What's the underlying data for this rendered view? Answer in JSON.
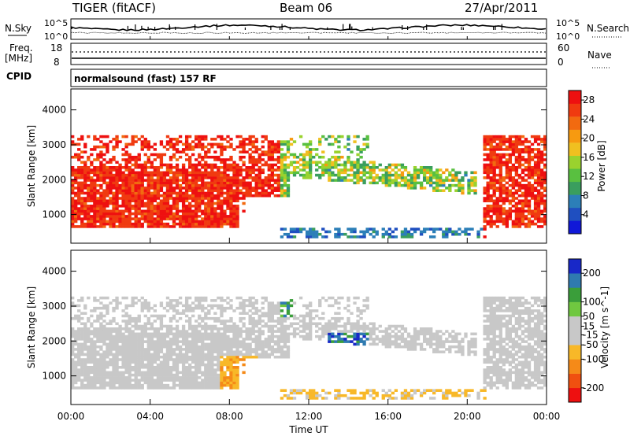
{
  "header": {
    "title": "TIGER (fitACF)",
    "beam": "Beam 06",
    "date": "27/Apr/2011",
    "cpid": "normalsound (fast) 157 RF"
  },
  "strip_labels": {
    "nsky": "N.Sky",
    "nsky_hi": "10^5",
    "nsky_lo": "10^0",
    "nsearch": "N.Search",
    "nsearch_hi": "10^5",
    "nsearch_lo": "10^0",
    "freq": "Freq.",
    "freq_unit": "[MHz]",
    "freq_hi": "18",
    "freq_lo": "8",
    "nave_hi": "60",
    "nave_lo": "0",
    "nave": "Nave",
    "cpid": "CPID"
  },
  "colors": {
    "power": [
      "#1018d8",
      "#1f4fc0",
      "#2c7fb8",
      "#3a9e5e",
      "#59c040",
      "#9ad22e",
      "#f0c020",
      "#f79a10",
      "#f26a10",
      "#f03a10",
      "#ee1010"
    ],
    "velocity": [
      "#ee1010",
      "#f05010",
      "#f58a18",
      "#f8b828",
      "#c8c8c8",
      "#c8c8c8",
      "#70c840",
      "#3a9e3a",
      "#2f7ab0",
      "#1828c8"
    ],
    "background": "#ffffff"
  },
  "chart_data": [
    {
      "type": "heatmap",
      "title": "Power",
      "xlabel": "",
      "ylabel": "Slant Range [km]",
      "x_ticks": [
        "00:00",
        "04:00",
        "08:00",
        "12:00",
        "16:00",
        "20:00",
        "00:00"
      ],
      "y_ticks": [
        "1000",
        "2000",
        "3000",
        "4000"
      ],
      "xlim_hours": [
        0,
        24
      ],
      "ylim_km": [
        180,
        4600
      ],
      "colorbar": {
        "label": "Power [dB]",
        "ticks": [
          "4",
          "8",
          "12",
          "16",
          "20",
          "24",
          "28"
        ],
        "range": [
          0,
          30
        ]
      }
    },
    {
      "type": "heatmap",
      "title": "Velocity",
      "xlabel": "Time UT",
      "ylabel": "Slant Range [km]",
      "x_ticks": [
        "00:00",
        "04:00",
        "08:00",
        "12:00",
        "16:00",
        "20:00",
        "00:00"
      ],
      "y_ticks": [
        "1000",
        "2000",
        "3000",
        "4000"
      ],
      "xlim_hours": [
        0,
        24
      ],
      "ylim_km": [
        180,
        4600
      ],
      "colorbar": {
        "label": "Velocity [m s^-1]",
        "ticks": [
          "200",
          "100",
          "50",
          "15",
          "-15",
          "-50",
          "-100",
          "-200"
        ],
        "range": [
          -250,
          250
        ]
      }
    }
  ]
}
